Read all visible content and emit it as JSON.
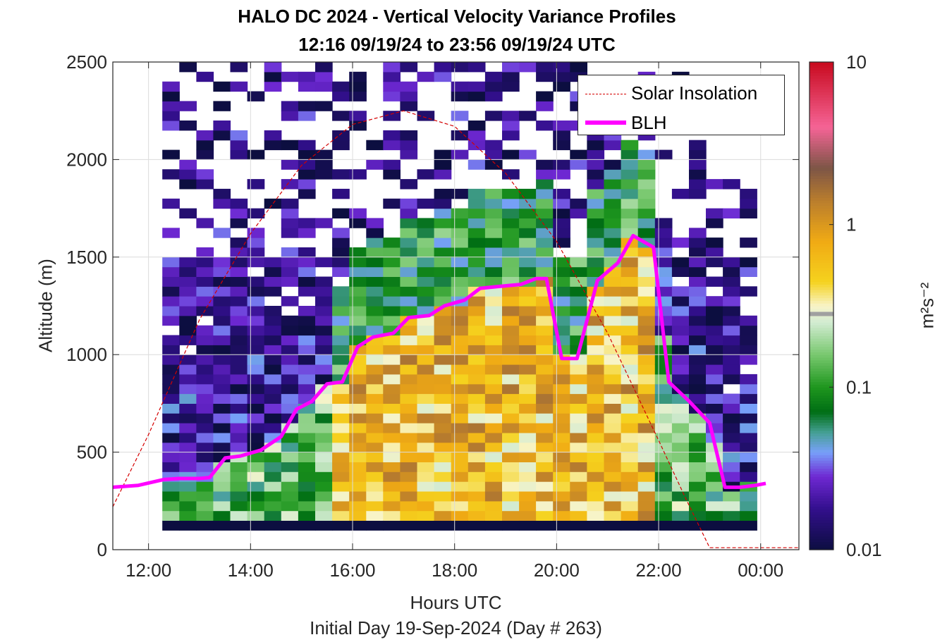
{
  "title_line1": "HALO DC 2024 - Vertical Velocity Variance Profiles",
  "title_line2": "12:16 09/19/24 to 23:56 09/19/24  UTC",
  "xlabel": "Hours UTC",
  "footer": "Initial Day 19-Sep-2024 (Day # 263)",
  "ylabel": "Altitude (m)",
  "colorbar_label": "m²s⁻²",
  "legend": {
    "solar": "Solar Insolation",
    "blh": "BLH"
  },
  "colors": {
    "blh": "#ff00ff",
    "solar": "#d40000",
    "grid": "#dcdcdc",
    "axis": "#262626"
  },
  "chart_data": {
    "type": "heatmap",
    "title": "HALO DC 2024 - Vertical Velocity Variance Profiles",
    "subtitle": "12:16 09/19/24 to 23:56 09/19/24  UTC",
    "xlabel": "Hours UTC",
    "ylabel": "Altitude (m)",
    "xlim": [
      11.3,
      24.75
    ],
    "ylim": [
      0,
      2500
    ],
    "xticks": [
      12,
      14,
      16,
      18,
      20,
      22,
      24
    ],
    "xticklabels": [
      "12:00",
      "14:00",
      "16:00",
      "18:00",
      "20:00",
      "22:00",
      "00:00"
    ],
    "yticks": [
      0,
      500,
      1000,
      1500,
      2000,
      2500
    ],
    "colorbar": {
      "scale": "log",
      "min": 0.01,
      "max": 10,
      "ticks": [
        0.01,
        0.1,
        1,
        10
      ],
      "ticklabels": [
        "0.01",
        "0.1",
        "1",
        "10"
      ],
      "label": "m²s⁻²"
    },
    "grid": true,
    "legend_position": "top-right",
    "heatmap": {
      "time_start": 12.27,
      "time_end": 23.93,
      "column_width_h": 0.333,
      "alt_bottom": 100,
      "alt_top": 2500,
      "bin_height_m": 50,
      "lowest_bin_value": 0.01,
      "description_values": "log10 variance per column approximated by profile regime"
    },
    "series": [
      {
        "name": "BLH",
        "x": [
          11.3,
          11.8,
          12.3,
          12.6,
          13.0,
          13.2,
          13.5,
          13.8,
          14.2,
          14.6,
          14.9,
          15.2,
          15.5,
          15.8,
          16.1,
          16.4,
          16.8,
          17.1,
          17.5,
          17.8,
          18.2,
          18.5,
          18.9,
          19.3,
          19.6,
          19.8,
          20.1,
          20.4,
          20.8,
          21.2,
          21.5,
          21.9,
          22.2,
          22.6,
          23.0,
          23.3,
          23.6,
          23.9,
          24.1
        ],
        "y": [
          320,
          330,
          360,
          365,
          365,
          370,
          470,
          480,
          510,
          580,
          720,
          760,
          850,
          860,
          1040,
          1090,
          1110,
          1190,
          1200,
          1250,
          1280,
          1340,
          1350,
          1360,
          1390,
          1390,
          980,
          980,
          1380,
          1470,
          1610,
          1550,
          860,
          760,
          650,
          320,
          320,
          330,
          340
        ]
      },
      {
        "name": "Solar Insolation",
        "x": [
          11.3,
          12.0,
          13.0,
          14.0,
          15.0,
          16.0,
          17.0,
          18.0,
          19.0,
          20.0,
          21.0,
          22.0,
          22.5,
          23.0,
          24.75
        ],
        "y": [
          220,
          590,
          1180,
          1620,
          1970,
          2180,
          2250,
          2170,
          1930,
          1580,
          1110,
          560,
          280,
          10,
          10
        ]
      }
    ]
  }
}
